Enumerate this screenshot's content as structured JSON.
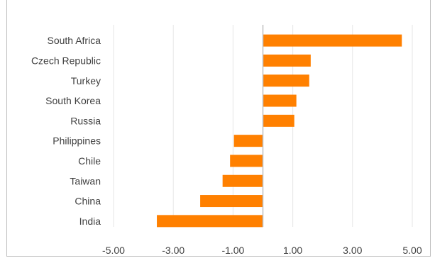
{
  "chart_data": {
    "type": "bar",
    "orientation": "horizontal",
    "title": "",
    "xlabel": "",
    "ylabel": "",
    "categories": [
      "South Africa",
      "Czech Republic",
      "Turkey",
      "South Korea",
      "Russia",
      "Philippines",
      "Chile",
      "Taiwan",
      "China",
      "India"
    ],
    "values": [
      4.65,
      1.6,
      1.55,
      1.12,
      1.05,
      -0.97,
      -1.1,
      -1.35,
      -2.1,
      -3.55
    ],
    "xlim": [
      -5,
      5
    ],
    "x_ticks": [
      "-5.00",
      "-3.00",
      "-1.00",
      "1.00",
      "3.00",
      "5.00"
    ],
    "x_tick_values": [
      -5,
      -3,
      -1,
      1,
      3,
      5
    ],
    "grid": "vertical",
    "legend": "none",
    "bar_color": "#ff8000"
  }
}
